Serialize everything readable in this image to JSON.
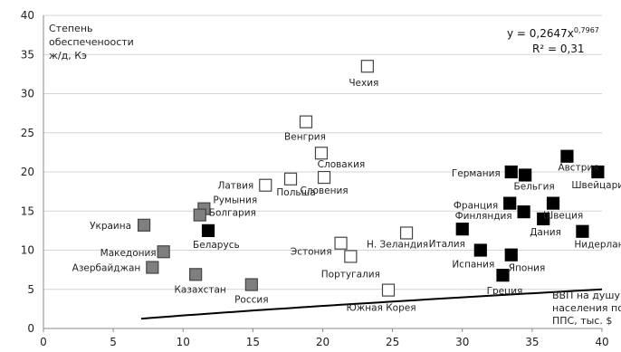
{
  "chart_data": {
    "type": "scatter",
    "y_axis_title_lines": [
      "Степень",
      "обеспеченоости",
      "ж/д, Кэ"
    ],
    "x_axis_title_lines": [
      "ВВП на душу",
      "населения по",
      "ППС, тыс. $"
    ],
    "trendline": {
      "equation_prefix": "y = 0,2647x",
      "equation_exponent": "0,7967",
      "r2_label": "R² = 0,31",
      "coef": 0.2647,
      "power": 0.7967,
      "x_range": [
        7,
        40
      ]
    },
    "xlim": [
      0,
      40
    ],
    "ylim": [
      0,
      40
    ],
    "x_ticks": [
      0,
      5,
      10,
      15,
      20,
      25,
      30,
      35,
      40
    ],
    "y_ticks": [
      0,
      5,
      10,
      15,
      20,
      25,
      30,
      35,
      40
    ],
    "grid": "horizontal",
    "series": [
      {
        "marker": "gray-square",
        "color": "#7f7f7f",
        "points": [
          {
            "label": "Украина",
            "x": 7.2,
            "y": 13.2
          },
          {
            "label": "Македония",
            "x": 8.6,
            "y": 9.8
          },
          {
            "label": "Азербайджан",
            "x": 7.8,
            "y": 7.8
          },
          {
            "label": "Румыния",
            "x": 11.5,
            "y": 15.3
          },
          {
            "label": "Болгария",
            "x": 11.2,
            "y": 14.5
          },
          {
            "label": "Казахстан",
            "x": 10.9,
            "y": 6.9
          },
          {
            "label": "Россия",
            "x": 14.9,
            "y": 5.6
          }
        ]
      },
      {
        "marker": "open-square",
        "color": "#ffffff",
        "points": [
          {
            "label": "Чехия",
            "x": 23.2,
            "y": 33.5
          },
          {
            "label": "Венгрия",
            "x": 18.8,
            "y": 26.4
          },
          {
            "label": "Словакия",
            "x": 19.9,
            "y": 22.4
          },
          {
            "label": "Латвия",
            "x": 15.9,
            "y": 18.3
          },
          {
            "label": "Польша",
            "x": 17.7,
            "y": 19.1
          },
          {
            "label": "Словения",
            "x": 20.1,
            "y": 19.3
          },
          {
            "label": "Эстония",
            "x": 21.3,
            "y": 10.9
          },
          {
            "label": "Португалия",
            "x": 22.0,
            "y": 9.2
          },
          {
            "label": "Н. Зеландия",
            "x": 26.0,
            "y": 12.2
          },
          {
            "label": "Южная Корея",
            "x": 24.7,
            "y": 4.9
          }
        ]
      },
      {
        "marker": "black-square",
        "color": "#000000",
        "points": [
          {
            "label": "Беларусь",
            "x": 11.8,
            "y": 12.5
          },
          {
            "label": "Германия",
            "x": 33.5,
            "y": 20.0
          },
          {
            "label": "Бельгия",
            "x": 34.5,
            "y": 19.6
          },
          {
            "label": "Австрия",
            "x": 37.5,
            "y": 22.0
          },
          {
            "label": "Швейцария",
            "x": 39.7,
            "y": 20.0
          },
          {
            "label": "Франция",
            "x": 33.4,
            "y": 16.0
          },
          {
            "label": "Финляндия",
            "x": 34.4,
            "y": 14.9
          },
          {
            "label": "Швеция",
            "x": 36.5,
            "y": 16.0
          },
          {
            "label": "Дания",
            "x": 35.8,
            "y": 14.0
          },
          {
            "label": "Италия",
            "x": 30.0,
            "y": 12.7
          },
          {
            "label": "Нидерланды",
            "x": 38.6,
            "y": 12.4
          },
          {
            "label": "Испания",
            "x": 31.3,
            "y": 10.0
          },
          {
            "label": "Япония",
            "x": 33.5,
            "y": 9.4
          },
          {
            "label": "Греция",
            "x": 32.9,
            "y": 6.8
          }
        ]
      }
    ]
  }
}
